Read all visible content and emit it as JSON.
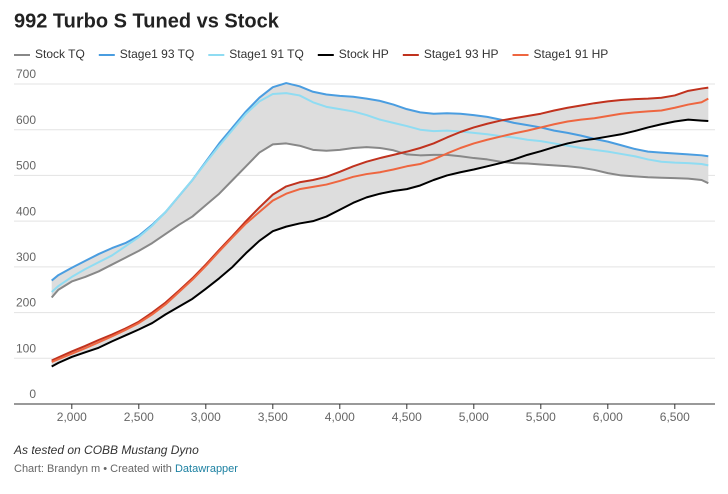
{
  "chart_data": {
    "type": "line",
    "title": "992 Turbo S Tuned vs Stock",
    "note": "As tested on COBB Mustang Dyno",
    "credit": "Chart: Brandyn m • Created with ",
    "credit_link": "Datawrapper",
    "x": [
      1850,
      1900,
      2000,
      2100,
      2200,
      2300,
      2400,
      2500,
      2600,
      2700,
      2800,
      2900,
      3000,
      3100,
      3200,
      3300,
      3400,
      3500,
      3600,
      3700,
      3800,
      3900,
      4000,
      4100,
      4200,
      4300,
      4400,
      4500,
      4600,
      4700,
      4800,
      4900,
      5000,
      5100,
      5200,
      5300,
      5400,
      5500,
      5600,
      5700,
      5800,
      5900,
      6000,
      6100,
      6200,
      6300,
      6400,
      6500,
      6600,
      6700,
      6750
    ],
    "series": [
      {
        "name": "Stock TQ",
        "color": "#888888",
        "values": [
          233,
          250,
          268,
          278,
          290,
          305,
          320,
          335,
          352,
          372,
          392,
          410,
          435,
          460,
          490,
          520,
          550,
          568,
          570,
          565,
          556,
          554,
          556,
          560,
          562,
          560,
          555,
          546,
          544,
          545,
          545,
          542,
          538,
          535,
          530,
          527,
          526,
          524,
          522,
          520,
          517,
          512,
          505,
          500,
          498,
          496,
          495,
          494,
          493,
          490,
          483
        ]
      },
      {
        "name": "Stage1 93 TQ",
        "color": "#4a9de0",
        "values": [
          270,
          282,
          298,
          313,
          328,
          341,
          352,
          368,
          392,
          420,
          455,
          490,
          530,
          570,
          605,
          640,
          670,
          693,
          702,
          695,
          683,
          677,
          674,
          672,
          668,
          663,
          655,
          645,
          638,
          635,
          636,
          635,
          632,
          628,
          622,
          615,
          610,
          605,
          598,
          593,
          587,
          580,
          574,
          566,
          558,
          552,
          550,
          548,
          546,
          544,
          542
        ]
      },
      {
        "name": "Stage1 91 TQ",
        "color": "#8fdcf2",
        "values": [
          245,
          258,
          278,
          295,
          310,
          325,
          345,
          365,
          390,
          420,
          455,
          490,
          528,
          565,
          600,
          635,
          662,
          678,
          680,
          675,
          660,
          650,
          645,
          640,
          632,
          622,
          615,
          608,
          600,
          597,
          598,
          596,
          593,
          590,
          586,
          583,
          578,
          575,
          570,
          565,
          560,
          556,
          552,
          547,
          542,
          535,
          530,
          528,
          527,
          525,
          522
        ]
      },
      {
        "name": "Stock HP",
        "color": "#000000",
        "values": [
          82,
          90,
          103,
          113,
          123,
          137,
          150,
          163,
          177,
          196,
          213,
          230,
          252,
          275,
          300,
          330,
          357,
          378,
          388,
          395,
          400,
          410,
          425,
          440,
          452,
          460,
          466,
          470,
          478,
          490,
          500,
          507,
          513,
          520,
          527,
          535,
          545,
          553,
          562,
          570,
          576,
          580,
          585,
          590,
          597,
          605,
          612,
          618,
          622,
          620,
          619
        ]
      },
      {
        "name": "Stage1 93 HP",
        "color": "#c0321e",
        "values": [
          95,
          102,
          115,
          127,
          140,
          152,
          165,
          180,
          200,
          222,
          248,
          275,
          305,
          337,
          368,
          400,
          430,
          458,
          476,
          485,
          490,
          497,
          508,
          520,
          530,
          538,
          545,
          552,
          560,
          570,
          583,
          595,
          605,
          613,
          620,
          625,
          630,
          635,
          642,
          648,
          653,
          658,
          662,
          665,
          667,
          668,
          670,
          675,
          685,
          690,
          692
        ]
      },
      {
        "name": "Stage1 91 HP",
        "color": "#ee6640",
        "values": [
          92,
          98,
          110,
          122,
          135,
          148,
          162,
          177,
          196,
          218,
          245,
          272,
          302,
          334,
          365,
          395,
          420,
          445,
          460,
          470,
          475,
          480,
          488,
          497,
          503,
          507,
          513,
          520,
          525,
          535,
          548,
          560,
          570,
          578,
          585,
          592,
          598,
          605,
          612,
          618,
          622,
          625,
          630,
          635,
          638,
          640,
          642,
          648,
          655,
          660,
          668
        ]
      }
    ],
    "fill_between": [
      {
        "from": 0,
        "to": 1,
        "color": "#dddddd"
      },
      {
        "from": 3,
        "to": 4,
        "color": "#dddddd"
      }
    ],
    "xlim": [
      1800,
      6800
    ],
    "xticks": [
      {
        "value": 2000,
        "label": "2,000"
      },
      {
        "value": 2500,
        "label": "2,500"
      },
      {
        "value": 3000,
        "label": "3,000"
      },
      {
        "value": 3500,
        "label": "3,500"
      },
      {
        "value": 4000,
        "label": "4,000"
      },
      {
        "value": 4500,
        "label": "4,500"
      },
      {
        "value": 5000,
        "label": "5,000"
      },
      {
        "value": 5500,
        "label": "5,500"
      },
      {
        "value": 6000,
        "label": "6,000"
      },
      {
        "value": 6500,
        "label": "6,500"
      }
    ],
    "ylim": [
      0,
      700
    ],
    "yticks": [
      0,
      100,
      200,
      300,
      400,
      500,
      600,
      700
    ],
    "grid": true
  }
}
